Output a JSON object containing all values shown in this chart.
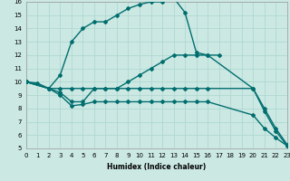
{
  "background_color": "#cbe8e3",
  "grid_color": "#b0d8d2",
  "line_color": "#006e6e",
  "marker_style": "D",
  "marker_size": 2.0,
  "line_width": 1.0,
  "xlabel": "Humidex (Indice chaleur)",
  "xlim": [
    0,
    23
  ],
  "ylim": [
    5,
    16
  ],
  "xticks": [
    0,
    1,
    2,
    3,
    4,
    5,
    6,
    7,
    8,
    9,
    10,
    11,
    12,
    13,
    14,
    15,
    16,
    17,
    18,
    19,
    20,
    21,
    22,
    23
  ],
  "yticks": [
    5,
    6,
    7,
    8,
    9,
    10,
    11,
    12,
    13,
    14,
    15,
    16
  ],
  "series": [
    {
      "x": [
        0,
        1,
        2,
        3,
        4,
        5,
        6,
        7,
        8,
        9,
        10,
        11,
        12,
        13,
        14,
        15,
        16,
        17
      ],
      "y": [
        10,
        9.9,
        9.5,
        10.5,
        13.0,
        14.0,
        14.5,
        14.5,
        15.0,
        15.5,
        15.8,
        16.0,
        16.0,
        16.3,
        15.2,
        12.2,
        12.0,
        12.0
      ]
    },
    {
      "x": [
        0,
        2,
        3,
        4,
        5,
        6,
        7,
        8,
        9,
        10,
        11,
        12,
        13,
        14,
        15,
        16,
        20,
        21,
        22,
        23
      ],
      "y": [
        10,
        9.5,
        9.5,
        9.5,
        9.5,
        9.5,
        9.5,
        9.5,
        10.0,
        10.5,
        11.0,
        11.5,
        12.0,
        12.0,
        12.0,
        12.0,
        9.5,
        8.0,
        6.5,
        5.3
      ]
    },
    {
      "x": [
        0,
        2,
        3,
        4,
        5,
        6,
        7,
        8,
        9,
        10,
        11,
        12,
        13,
        14,
        15,
        16,
        20,
        21,
        22,
        23
      ],
      "y": [
        10,
        9.5,
        9.2,
        8.5,
        8.5,
        9.5,
        9.5,
        9.5,
        9.5,
        9.5,
        9.5,
        9.5,
        9.5,
        9.5,
        9.5,
        9.5,
        9.5,
        7.8,
        6.3,
        5.2
      ]
    },
    {
      "x": [
        0,
        2,
        3,
        4,
        5,
        6,
        7,
        8,
        9,
        10,
        11,
        12,
        13,
        14,
        15,
        16,
        20,
        21,
        22,
        23
      ],
      "y": [
        10,
        9.5,
        9.0,
        8.2,
        8.3,
        8.5,
        8.5,
        8.5,
        8.5,
        8.5,
        8.5,
        8.5,
        8.5,
        8.5,
        8.5,
        8.5,
        7.5,
        6.5,
        5.8,
        5.2
      ]
    }
  ]
}
